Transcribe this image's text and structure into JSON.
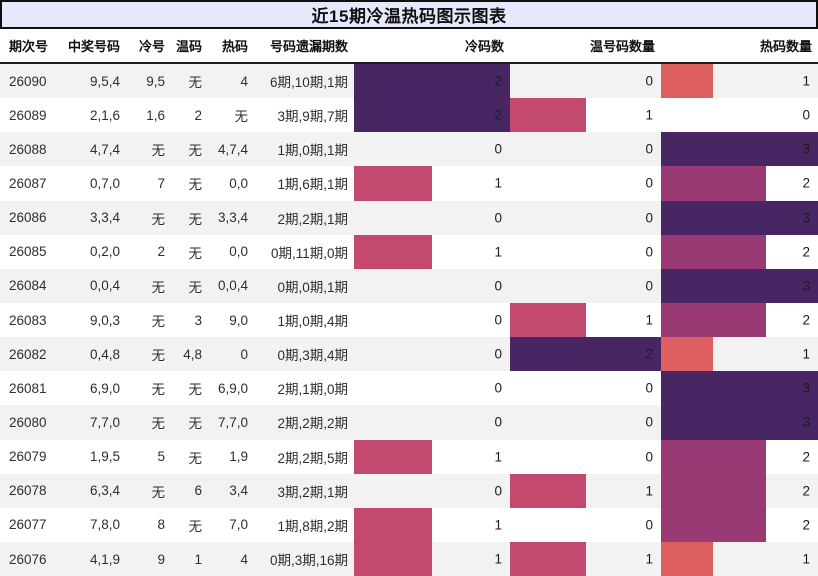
{
  "title": "近15期冷温热码图示图表",
  "colors": {
    "title_background": "#e6e9fb",
    "title_border": "#101010",
    "row_stripe": "#f2f2f2",
    "row_plain": "#ffffff",
    "bar_dark_purple": "#472663",
    "bar_mid_purple": "#9a3a74",
    "bar_pink": "#c4496f",
    "bar_salmon": "#dd5f5f"
  },
  "chart_data": {
    "type": "table",
    "title": "近15期冷温热码图示图表",
    "columns": [
      "期次号",
      "中奖号码",
      "冷号",
      "温码",
      "热码",
      "号码遗漏期数",
      "冷码数",
      "温号码数量",
      "热码数量"
    ],
    "bar_columns": {
      "cold": {
        "label": "冷码数",
        "max": 2,
        "colors": {
          "1": "#c4496f",
          "2": "#472663"
        }
      },
      "warm": {
        "label": "温号码数量",
        "max": 2,
        "colors": {
          "1": "#c4496f",
          "2": "#472663"
        }
      },
      "hot": {
        "label": "热码数量",
        "max": 3,
        "colors": {
          "1": "#dd5f5f",
          "2": "#9a3a74",
          "3": "#472663"
        }
      }
    },
    "rows": [
      {
        "period": "26090",
        "win": "9,5,4",
        "cold": "9,5",
        "warm": "无",
        "hot": "4",
        "miss": "6期,10期,1期",
        "cold_count": 2,
        "warm_count": 0,
        "hot_count": 1
      },
      {
        "period": "26089",
        "win": "2,1,6",
        "cold": "1,6",
        "warm": "2",
        "hot": "无",
        "miss": "3期,9期,7期",
        "cold_count": 2,
        "warm_count": 1,
        "hot_count": 0
      },
      {
        "period": "26088",
        "win": "4,7,4",
        "cold": "无",
        "warm": "无",
        "hot": "4,7,4",
        "miss": "1期,0期,1期",
        "cold_count": 0,
        "warm_count": 0,
        "hot_count": 3
      },
      {
        "period": "26087",
        "win": "0,7,0",
        "cold": "7",
        "warm": "无",
        "hot": "0,0",
        "miss": "1期,6期,1期",
        "cold_count": 1,
        "warm_count": 0,
        "hot_count": 2
      },
      {
        "period": "26086",
        "win": "3,3,4",
        "cold": "无",
        "warm": "无",
        "hot": "3,3,4",
        "miss": "2期,2期,1期",
        "cold_count": 0,
        "warm_count": 0,
        "hot_count": 3
      },
      {
        "period": "26085",
        "win": "0,2,0",
        "cold": "2",
        "warm": "无",
        "hot": "0,0",
        "miss": "0期,11期,0期",
        "cold_count": 1,
        "warm_count": 0,
        "hot_count": 2
      },
      {
        "period": "26084",
        "win": "0,0,4",
        "cold": "无",
        "warm": "无",
        "hot": "0,0,4",
        "miss": "0期,0期,1期",
        "cold_count": 0,
        "warm_count": 0,
        "hot_count": 3
      },
      {
        "period": "26083",
        "win": "9,0,3",
        "cold": "无",
        "warm": "3",
        "hot": "9,0",
        "miss": "1期,0期,4期",
        "cold_count": 0,
        "warm_count": 1,
        "hot_count": 2
      },
      {
        "period": "26082",
        "win": "0,4,8",
        "cold": "无",
        "warm": "4,8",
        "hot": "0",
        "miss": "0期,3期,4期",
        "cold_count": 0,
        "warm_count": 2,
        "hot_count": 1
      },
      {
        "period": "26081",
        "win": "6,9,0",
        "cold": "无",
        "warm": "无",
        "hot": "6,9,0",
        "miss": "2期,1期,0期",
        "cold_count": 0,
        "warm_count": 0,
        "hot_count": 3
      },
      {
        "period": "26080",
        "win": "7,7,0",
        "cold": "无",
        "warm": "无",
        "hot": "7,7,0",
        "miss": "2期,2期,2期",
        "cold_count": 0,
        "warm_count": 0,
        "hot_count": 3
      },
      {
        "period": "26079",
        "win": "1,9,5",
        "cold": "5",
        "warm": "无",
        "hot": "1,9",
        "miss": "2期,2期,5期",
        "cold_count": 1,
        "warm_count": 0,
        "hot_count": 2
      },
      {
        "period": "26078",
        "win": "6,3,4",
        "cold": "无",
        "warm": "6",
        "hot": "3,4",
        "miss": "3期,2期,1期",
        "cold_count": 0,
        "warm_count": 1,
        "hot_count": 2
      },
      {
        "period": "26077",
        "win": "7,8,0",
        "cold": "8",
        "warm": "无",
        "hot": "7,0",
        "miss": "1期,8期,2期",
        "cold_count": 1,
        "warm_count": 0,
        "hot_count": 2
      },
      {
        "period": "26076",
        "win": "4,1,9",
        "cold": "9",
        "warm": "1",
        "hot": "4",
        "miss": "0期,3期,16期",
        "cold_count": 1,
        "warm_count": 1,
        "hot_count": 1
      }
    ]
  }
}
